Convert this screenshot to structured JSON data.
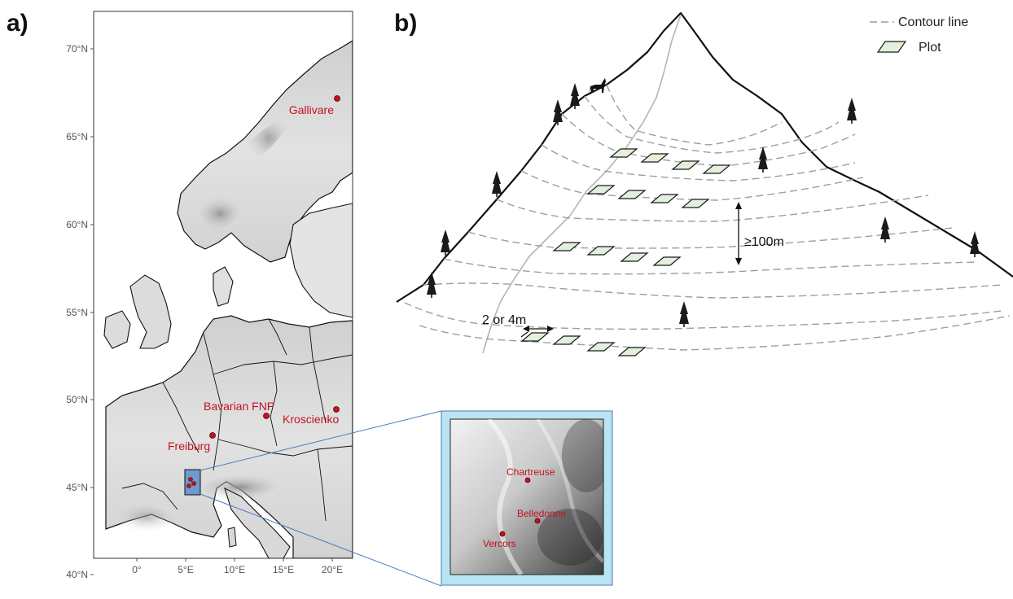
{
  "panels": {
    "a": {
      "label": "a)"
    },
    "b": {
      "label": "b)"
    }
  },
  "map": {
    "lat_ticks": [
      "70°N",
      "65°N",
      "60°N",
      "55°N",
      "50°N",
      "45°N",
      "40°N"
    ],
    "lon_ticks": [
      "0°",
      "5°E",
      "10°E",
      "15°E",
      "20°E"
    ],
    "sites": [
      {
        "name": "Gallivare"
      },
      {
        "name": "Bavarian FNP"
      },
      {
        "name": "Kroscienko"
      },
      {
        "name": "Freiburg"
      }
    ],
    "inset_sites": [
      {
        "name": "Chartreuse"
      },
      {
        "name": "Belledonne"
      },
      {
        "name": "Vercors"
      }
    ],
    "colors": {
      "site": "#c1121f",
      "inset_frame": "#b9e4f2",
      "connector": "#4a79c4",
      "land": "#dadada"
    }
  },
  "diagram": {
    "legend": [
      {
        "icon": "dashed-line",
        "label": "Contour line"
      },
      {
        "icon": "plot-parallelogram",
        "label": "Plot"
      }
    ],
    "annotations": {
      "vertical_spacing": "≥100m",
      "plot_spacing": "2 or 4m"
    },
    "colors": {
      "contour": "#9e9e9e",
      "plot_fill": "#e3f0dc",
      "ridge": "#111111",
      "path": "#b5b5b5"
    }
  }
}
